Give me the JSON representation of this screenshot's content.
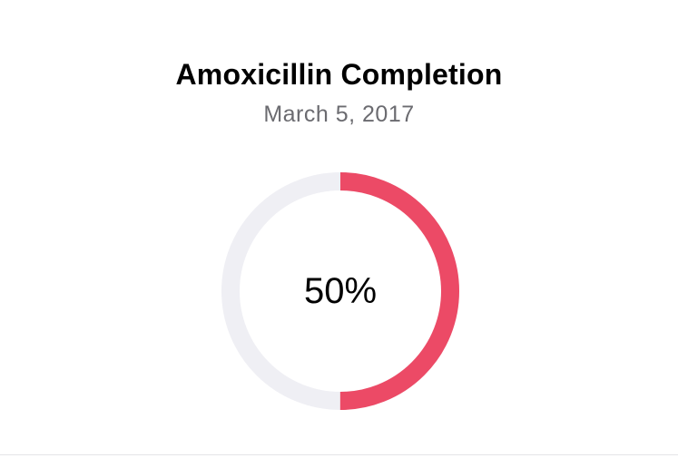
{
  "card": {
    "title": "Amoxicillin Completion",
    "date": "March 5, 2017"
  },
  "progress": {
    "value": 0.5,
    "label": "50%",
    "fill_color": "#ec4a66",
    "track_color": "#efeff4"
  }
}
